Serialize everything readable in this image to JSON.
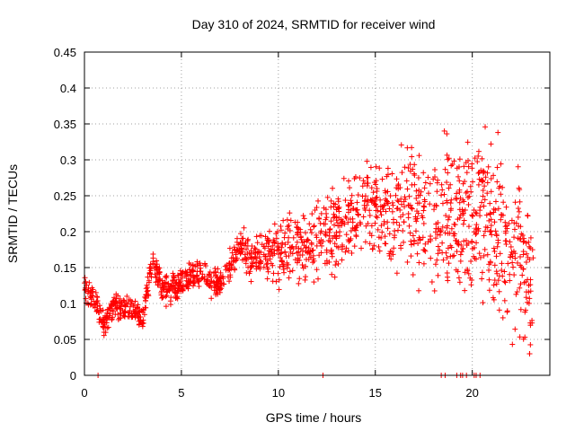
{
  "chart_data": {
    "type": "scatter",
    "title": "Day 310 of 2024, SRMTID for receiver wind",
    "xlabel": "GPS time / hours",
    "ylabel": "SRMTID / TECUs",
    "xlim": [
      0,
      24
    ],
    "ylim": [
      0,
      0.45
    ],
    "x_ticks": [
      0,
      5,
      10,
      15,
      20
    ],
    "y_ticks": [
      0,
      0.05,
      0.1,
      0.15,
      0.2,
      0.25,
      0.3,
      0.35,
      0.4,
      0.45
    ],
    "x_tick_labels": [
      "0",
      "5",
      "10",
      "15",
      "20"
    ],
    "y_tick_labels": [
      "0",
      "0.05",
      "0.1",
      "0.15",
      "0.2",
      "0.25",
      "0.3",
      "0.35",
      "0.4",
      "0.45"
    ],
    "grid": true,
    "marker": "+",
    "color": "#ff0000",
    "trend_hours": [
      0,
      0.5,
      1,
      1.5,
      2,
      2.5,
      3,
      3.5,
      4,
      4.5,
      5,
      5.5,
      6,
      6.5,
      7,
      7.5,
      8,
      8.5,
      9,
      9.5,
      10,
      10.5,
      11,
      11.5,
      12,
      12.5,
      13,
      13.5,
      14,
      14.5,
      15,
      15.5,
      16,
      16.5,
      17,
      17.5,
      18,
      18.5,
      19,
      19.5,
      20,
      20.5,
      21,
      21.5,
      22,
      22.5,
      23
    ],
    "trend_values": [
      0.12,
      0.11,
      0.07,
      0.1,
      0.09,
      0.09,
      0.08,
      0.16,
      0.12,
      0.12,
      0.13,
      0.14,
      0.14,
      0.13,
      0.13,
      0.15,
      0.18,
      0.16,
      0.17,
      0.17,
      0.17,
      0.18,
      0.18,
      0.17,
      0.19,
      0.2,
      0.2,
      0.21,
      0.22,
      0.23,
      0.24,
      0.22,
      0.22,
      0.23,
      0.22,
      0.21,
      0.21,
      0.22,
      0.22,
      0.2,
      0.22,
      0.23,
      0.2,
      0.2,
      0.17,
      0.16,
      0.14
    ],
    "zero_values_hours": [
      0.7,
      12.3,
      18.4,
      18.6,
      19.2,
      19.4,
      19.5,
      19.7,
      20.1,
      20.2,
      20.4
    ]
  }
}
